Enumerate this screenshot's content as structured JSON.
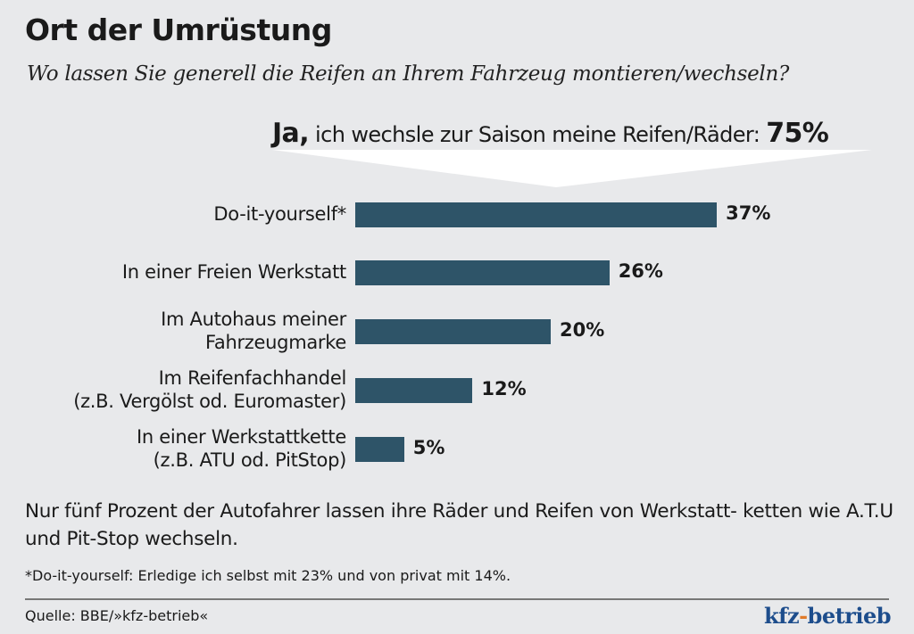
{
  "chart_data": {
    "type": "bar",
    "orientation": "horizontal",
    "title": "Ort der Umrüstung",
    "subtitle": "Wo lassen Sie generell die Reifen an Ihrem Fahrzeug montieren/wechseln?",
    "callout": {
      "bold": "Ja,",
      "text": " ich wechsle zur Saison meine Reifen/Räder: ",
      "value": "75%"
    },
    "categories": [
      [
        "Do-it-yourself*"
      ],
      [
        "In einer Freien Werkstatt"
      ],
      [
        "Im Autohaus meiner",
        "Fahrzeugmarke"
      ],
      [
        "Im Reifenfachhandel",
        "(z.B. Vergölst od. Euromaster)"
      ],
      [
        "In einer Werkstattkette",
        "(z.B. ATU od. PitStop)"
      ]
    ],
    "values": [
      37,
      26,
      20,
      12,
      5
    ],
    "value_labels": [
      "37%",
      "26%",
      "20%",
      "12%",
      "5%"
    ],
    "unit": "%",
    "bar_color": "#2e5468",
    "xlim": [
      0,
      40
    ],
    "grid": false
  },
  "note": "Nur fünf Prozent der Autofahrer lassen ihre Räder und Reifen von Werkstatt- ketten wie A.T.U und Pit-Stop wechseln.",
  "footnote": "*Do-it-yourself: Erledige ich selbst mit 23% und von privat mit 14%.",
  "source": "Quelle: BBE/»kfz-betrieb«",
  "logo": {
    "part1": "kfz",
    "dash": "-",
    "part2": "betrieb"
  }
}
